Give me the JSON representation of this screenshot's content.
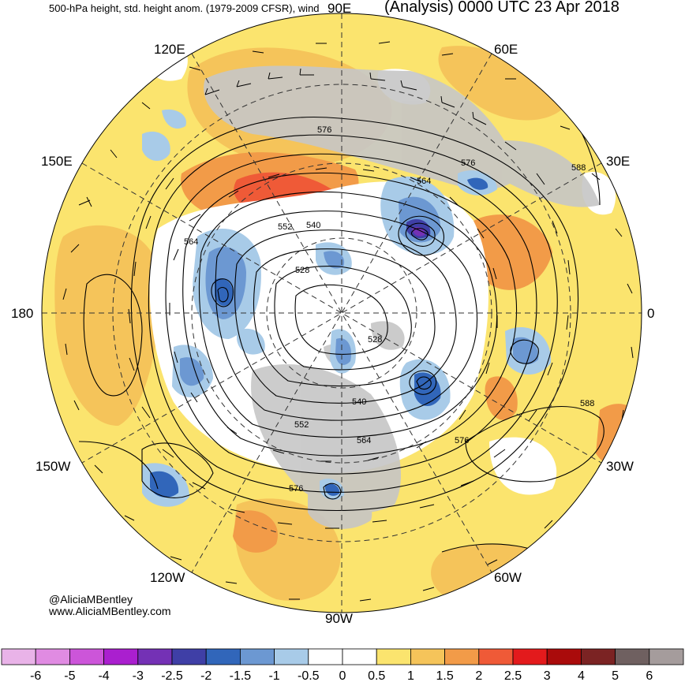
{
  "header": {
    "left_title": "500-hPa height, std. height anom. (1979-2009 CFSR), wind",
    "right_title": "(Analysis) 0000 UTC 23 Apr 2018"
  },
  "credits": {
    "handle": "@AliciaMBentley",
    "website": "www.AliciaMBentley.com"
  },
  "map": {
    "projection": "north polar stereographic",
    "longitude_labels": [
      "90E",
      "60E",
      "30E",
      "0",
      "30W",
      "60W",
      "90W",
      "120W",
      "150W",
      "180",
      "150E",
      "120E"
    ],
    "contour_labels": [
      "576",
      "576",
      "588",
      "564",
      "540",
      "552",
      "564",
      "528",
      "528",
      "540",
      "552",
      "564",
      "576",
      "576",
      "588"
    ]
  },
  "colorbar": {
    "ticks": [
      "-6",
      "-5",
      "-4",
      "-3",
      "-2.5",
      "-2",
      "-1.5",
      "-1",
      "-0.5",
      "0",
      "0.5",
      "1",
      "1.5",
      "2",
      "2.5",
      "3",
      "4",
      "5",
      "6"
    ],
    "colors": [
      "#e9b3e8",
      "#e08be2",
      "#cc55d9",
      "#aa1fcf",
      "#7431b5",
      "#3f3fa6",
      "#3166ba",
      "#6c98d2",
      "#a8cbe8",
      "#ffffff",
      "#ffffff",
      "#fbe46e",
      "#f5c45a",
      "#f29b48",
      "#ef5a37",
      "#e31a1c",
      "#aa0b0b",
      "#7b2323",
      "#6f6060",
      "#a59c9c"
    ]
  }
}
